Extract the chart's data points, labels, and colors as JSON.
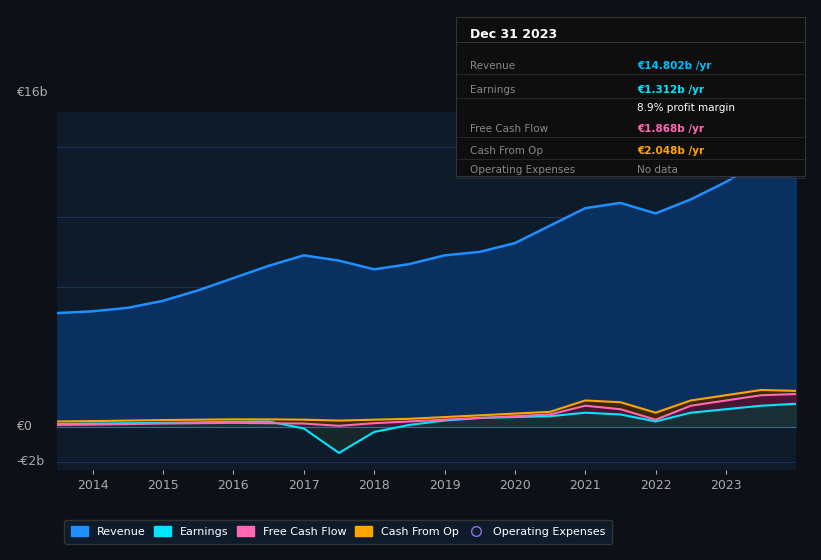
{
  "background_color": "#0d1117",
  "plot_bg_color": "#0d1b2a",
  "grid_color": "#1e3a5f",
  "years": [
    2013.5,
    2014.0,
    2014.5,
    2015.0,
    2015.5,
    2016.0,
    2016.5,
    2017.0,
    2017.5,
    2018.0,
    2018.5,
    2019.0,
    2019.5,
    2020.0,
    2020.5,
    2021.0,
    2021.5,
    2022.0,
    2022.5,
    2023.0,
    2023.5,
    2024.0
  ],
  "revenue": [
    6.5,
    6.6,
    6.8,
    7.2,
    7.8,
    8.5,
    9.2,
    9.8,
    9.5,
    9.0,
    9.3,
    9.8,
    10.0,
    10.5,
    11.5,
    12.5,
    12.8,
    12.2,
    13.0,
    14.0,
    15.2,
    14.802
  ],
  "earnings": [
    0.15,
    0.18,
    0.2,
    0.22,
    0.25,
    0.28,
    0.3,
    -0.1,
    -1.5,
    -0.3,
    0.1,
    0.35,
    0.5,
    0.55,
    0.6,
    0.8,
    0.7,
    0.3,
    0.8,
    1.0,
    1.2,
    1.312
  ],
  "free_cash_flow": [
    0.1,
    0.12,
    0.15,
    0.18,
    0.2,
    0.22,
    0.2,
    0.18,
    0.05,
    0.2,
    0.3,
    0.4,
    0.5,
    0.6,
    0.7,
    1.2,
    1.0,
    0.4,
    1.2,
    1.5,
    1.8,
    1.868
  ],
  "cash_from_op": [
    0.3,
    0.32,
    0.35,
    0.38,
    0.4,
    0.42,
    0.42,
    0.4,
    0.35,
    0.4,
    0.45,
    0.55,
    0.65,
    0.75,
    0.85,
    1.5,
    1.4,
    0.8,
    1.5,
    1.8,
    2.1,
    2.048
  ],
  "revenue_color": "#1e90ff",
  "revenue_fill": "#0a3060",
  "earnings_color": "#00e5ff",
  "fcf_color": "#ff69b4",
  "cfop_color": "#ffa500",
  "ylim_min": -2.5,
  "ylim_max": 18.0,
  "legend_entries": [
    {
      "label": "Revenue",
      "color": "#1e90ff",
      "filled": true
    },
    {
      "label": "Earnings",
      "color": "#00e5ff",
      "filled": true
    },
    {
      "label": "Free Cash Flow",
      "color": "#ff69b4",
      "filled": true
    },
    {
      "label": "Cash From Op",
      "color": "#ffa500",
      "filled": true
    },
    {
      "label": "Operating Expenses",
      "color": "#9370db",
      "filled": false
    }
  ],
  "info_box": {
    "date": "Dec 31 2023",
    "rows": [
      {
        "label": "Revenue",
        "value": "€14.802b /yr",
        "value_color": "#00bfff",
        "bold": true
      },
      {
        "label": "Earnings",
        "value": "€1.312b /yr",
        "value_color": "#00e5ff",
        "bold": true
      },
      {
        "label": "",
        "value": "8.9% profit margin",
        "value_color": "#ffffff",
        "bold": false
      },
      {
        "label": "Free Cash Flow",
        "value": "€1.868b /yr",
        "value_color": "#ff69b4",
        "bold": true
      },
      {
        "label": "Cash From Op",
        "value": "€2.048b /yr",
        "value_color": "#ffa500",
        "bold": true
      },
      {
        "label": "Operating Expenses",
        "value": "No data",
        "value_color": "#888888",
        "bold": false
      }
    ]
  }
}
